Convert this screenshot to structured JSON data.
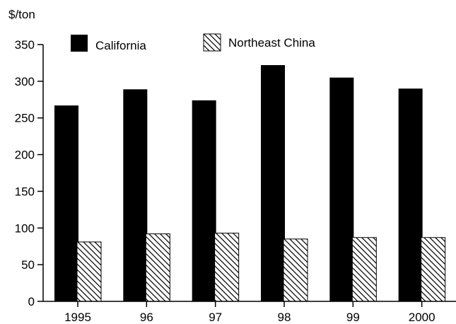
{
  "chart_data": {
    "type": "bar",
    "title": "",
    "xlabel": "",
    "ylabel": "$/ton",
    "ylim": [
      0,
      350
    ],
    "yticks": [
      0,
      50,
      100,
      150,
      200,
      250,
      300,
      350
    ],
    "categories": [
      "1995",
      "96",
      "97",
      "98",
      "99",
      "2000"
    ],
    "series": [
      {
        "name": "California",
        "values": [
          267,
          289,
          274,
          322,
          305,
          290
        ],
        "fill": "solid",
        "color": "#000000"
      },
      {
        "name": "Northeast China",
        "values": [
          81,
          92,
          93,
          85,
          87,
          87
        ],
        "fill": "hatch",
        "color": "#000000"
      }
    ],
    "grid": false,
    "legend": "top"
  }
}
